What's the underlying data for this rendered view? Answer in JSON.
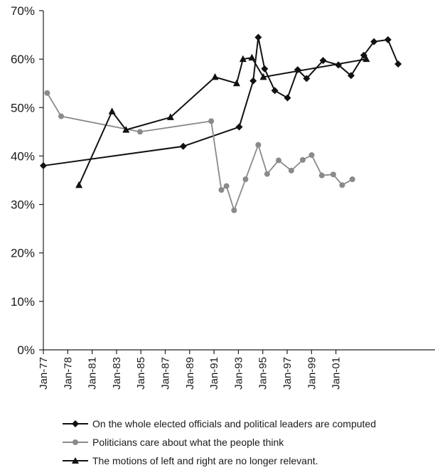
{
  "chart_data": {
    "type": "line",
    "title": "",
    "xlabel": "",
    "ylabel": "",
    "ylim": [
      0,
      70
    ],
    "yticks": [
      0,
      10,
      20,
      30,
      40,
      50,
      60,
      70
    ],
    "ytick_labels": [
      "0%",
      "10%",
      "20%",
      "30%",
      "40%",
      "50%",
      "60%",
      "70%"
    ],
    "xlim": [
      "1977-01",
      "2002-09"
    ],
    "x_tick_labels": [
      "Jan-77",
      "Jan-78",
      "Jan-81",
      "Jan-83",
      "Jan-85",
      "Jan-87",
      "Jan-89",
      "Jan-91",
      "Jan-93",
      "Jan-95",
      "Jan-97",
      "Jan-99",
      "Jan-01"
    ],
    "grid": false,
    "legend_position": "bottom",
    "series": [
      {
        "name": "On the  whole elected officials and political leaders are computed",
        "color": "#111111",
        "marker": "diamond",
        "points": [
          [
            "1977-01",
            38
          ],
          [
            "1986-03",
            42
          ],
          [
            "1989-11",
            46
          ],
          [
            "1990-10",
            55.5
          ],
          [
            "1991-02",
            64.5
          ],
          [
            "1991-07",
            58
          ],
          [
            "1992-03",
            53.5
          ],
          [
            "1993-01",
            52
          ],
          [
            "1993-09",
            57.8
          ],
          [
            "1994-04",
            56
          ],
          [
            "1995-05",
            59.7
          ],
          [
            "1996-05",
            58.8
          ],
          [
            "1997-03",
            56.6
          ],
          [
            "1998-01",
            60.8
          ],
          [
            "1998-09",
            63.6
          ],
          [
            "1999-08",
            64
          ],
          [
            "2000-04",
            59
          ]
        ]
      },
      {
        "name": "Politicians care about what the people think",
        "color": "#8a8a8a",
        "marker": "circle",
        "points": [
          [
            "1977-04",
            53
          ],
          [
            "1978-03",
            48.2
          ],
          [
            "1983-05",
            45
          ],
          [
            "1988-01",
            47.2
          ],
          [
            "1988-09",
            33
          ],
          [
            "1989-01",
            33.8
          ],
          [
            "1989-07",
            28.8
          ],
          [
            "1990-04",
            35.2
          ],
          [
            "1991-02",
            42.3
          ],
          [
            "1991-09",
            36.3
          ],
          [
            "1992-06",
            39.1
          ],
          [
            "1993-04",
            37
          ],
          [
            "1994-01",
            39.2
          ],
          [
            "1994-08",
            40.2
          ],
          [
            "1995-04",
            36
          ],
          [
            "1996-01",
            36.2
          ],
          [
            "1996-08",
            34
          ],
          [
            "1997-04",
            35.2
          ]
        ]
      },
      {
        "name": "The motions of left and right are no longer relevant.",
        "color": "#111111",
        "marker": "triangle",
        "points": [
          [
            "1979-05",
            34
          ],
          [
            "1981-07",
            49.2
          ],
          [
            "1982-06",
            45.4
          ],
          [
            "1985-05",
            48
          ],
          [
            "1988-04",
            56.3
          ],
          [
            "1989-09",
            55
          ],
          [
            "1990-02",
            60
          ],
          [
            "1990-09",
            60.3
          ],
          [
            "1991-06",
            56.3
          ],
          [
            "1998-03",
            60
          ]
        ]
      }
    ]
  }
}
